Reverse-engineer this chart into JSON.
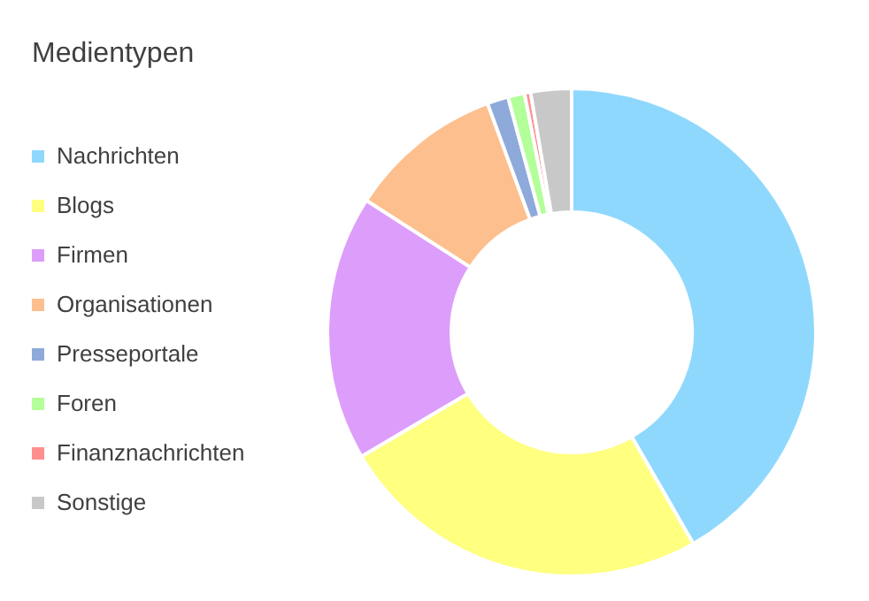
{
  "chart_data": {
    "type": "donut",
    "title": "Medientypen",
    "categories": [
      "Nachrichten",
      "Blogs",
      "Firmen",
      "Organisationen",
      "Presseportale",
      "Foren",
      "Finanznachrichten",
      "Sonstige"
    ],
    "values": [
      41.7,
      24.8,
      17.6,
      10.3,
      1.4,
      1.1,
      0.4,
      2.7
    ],
    "colors": [
      "#8fd8fd",
      "#ffff80",
      "#dd9dfb",
      "#fdbf8d",
      "#8eaadb",
      "#b3ff99",
      "#ff8f8f",
      "#c8c8c8"
    ],
    "legend": "left"
  }
}
